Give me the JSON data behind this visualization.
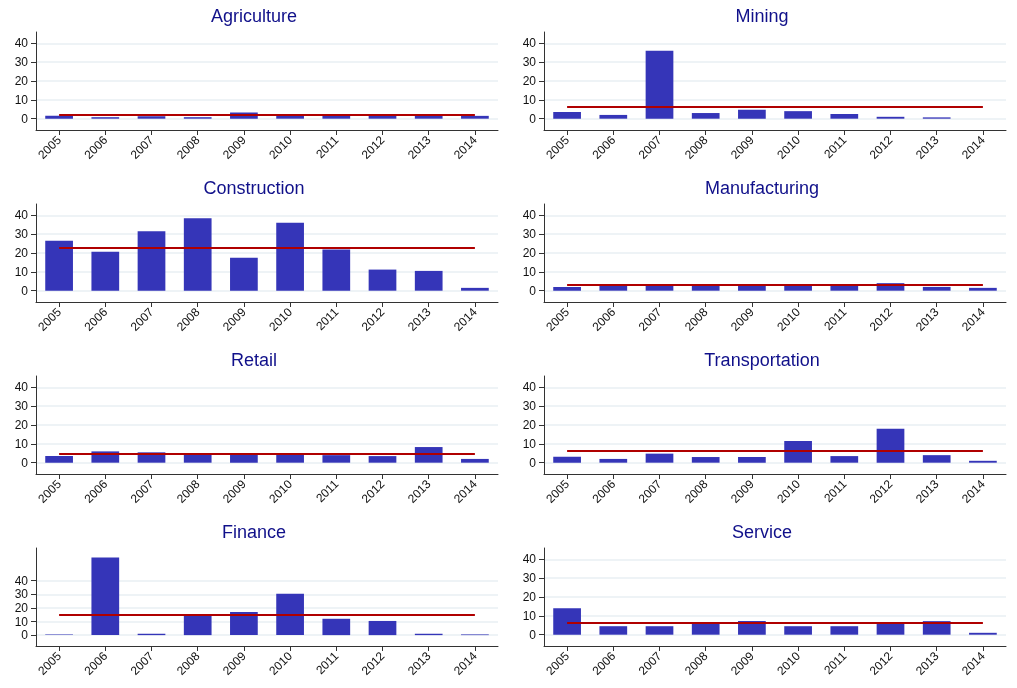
{
  "chart_data": [
    {
      "type": "bar",
      "title": "Agriculture",
      "categories": [
        "2005",
        "2006",
        "2007",
        "2008",
        "2009",
        "2010",
        "2011",
        "2012",
        "2013",
        "2014"
      ],
      "values": [
        1.5,
        0.8,
        1.3,
        0.8,
        3.3,
        2.5,
        2,
        1.8,
        1.8,
        1.5
      ],
      "color": "#3535b8",
      "ylim": [
        -6,
        46
      ],
      "yticks": [
        0,
        10,
        20,
        30,
        40
      ],
      "grid": "y",
      "ref_lines": [
        {
          "axis": "y",
          "value": 2,
          "color": "#b00000"
        }
      ]
    },
    {
      "type": "bar",
      "title": "Mining",
      "categories": [
        "2005",
        "2006",
        "2007",
        "2008",
        "2009",
        "2010",
        "2011",
        "2012",
        "2013",
        "2014"
      ],
      "values": [
        3.5,
        2,
        36,
        3,
        4.8,
        4,
        2.5,
        1,
        0.7,
        0
      ],
      "color": "#3535b8",
      "ylim": [
        -6,
        46
      ],
      "yticks": [
        0,
        10,
        20,
        30,
        40
      ],
      "grid": "y",
      "ref_lines": [
        {
          "axis": "y",
          "value": 6.3,
          "color": "#b00000"
        }
      ]
    },
    {
      "type": "bar",
      "title": "Construction",
      "categories": [
        "2005",
        "2006",
        "2007",
        "2008",
        "2009",
        "2010",
        "2011",
        "2012",
        "2013",
        "2014"
      ],
      "values": [
        26.5,
        20.7,
        31.6,
        38.4,
        17.5,
        36,
        21.8,
        11.2,
        10.5,
        1.5
      ],
      "color": "#3535b8",
      "ylim": [
        -6,
        46
      ],
      "yticks": [
        0,
        10,
        20,
        30,
        40
      ],
      "grid": "y",
      "ref_lines": [
        {
          "axis": "y",
          "value": 22.8,
          "color": "#b00000"
        }
      ]
    },
    {
      "type": "bar",
      "title": "Manufacturing",
      "categories": [
        "2005",
        "2006",
        "2007",
        "2008",
        "2009",
        "2010",
        "2011",
        "2012",
        "2013",
        "2014"
      ],
      "values": [
        2,
        2.5,
        3,
        3,
        2.5,
        2.5,
        3,
        4,
        2,
        1.5
      ],
      "color": "#3535b8",
      "ylim": [
        -6,
        46
      ],
      "yticks": [
        0,
        10,
        20,
        30,
        40
      ],
      "grid": "y",
      "ref_lines": [
        {
          "axis": "y",
          "value": 3,
          "color": "#b00000"
        }
      ]
    },
    {
      "type": "bar",
      "title": "Retail",
      "categories": [
        "2005",
        "2006",
        "2007",
        "2008",
        "2009",
        "2010",
        "2011",
        "2012",
        "2013",
        "2014"
      ],
      "values": [
        3.5,
        6,
        5.5,
        4.5,
        5,
        5,
        4,
        3.5,
        8.3,
        2
      ],
      "color": "#3535b8",
      "ylim": [
        -6,
        46
      ],
      "yticks": [
        0,
        10,
        20,
        30,
        40
      ],
      "grid": "y",
      "ref_lines": [
        {
          "axis": "y",
          "value": 5,
          "color": "#b00000"
        }
      ]
    },
    {
      "type": "bar",
      "title": "Transportation",
      "categories": [
        "2005",
        "2006",
        "2007",
        "2008",
        "2009",
        "2010",
        "2011",
        "2012",
        "2013",
        "2014"
      ],
      "values": [
        3.2,
        2,
        4.8,
        3,
        3,
        11.5,
        3.5,
        18,
        4,
        1
      ],
      "color": "#3535b8",
      "ylim": [
        -6,
        46
      ],
      "yticks": [
        0,
        10,
        20,
        30,
        40
      ],
      "grid": "y",
      "ref_lines": [
        {
          "axis": "y",
          "value": 6.3,
          "color": "#b00000"
        }
      ]
    },
    {
      "type": "bar",
      "title": "Finance",
      "categories": [
        "2005",
        "2006",
        "2007",
        "2008",
        "2009",
        "2010",
        "2011",
        "2012",
        "2013",
        "2014"
      ],
      "values": [
        0.5,
        57,
        1,
        14.8,
        17,
        30.4,
        12,
        10.4,
        1,
        0.5
      ],
      "color": "#3535b8",
      "ylim": [
        -8,
        64
      ],
      "yticks": [
        0,
        10,
        20,
        30,
        40
      ],
      "grid": "y",
      "ref_lines": [
        {
          "axis": "y",
          "value": 15,
          "color": "#b00000"
        }
      ]
    },
    {
      "type": "bar",
      "title": "Service",
      "categories": [
        "2005",
        "2006",
        "2007",
        "2008",
        "2009",
        "2010",
        "2011",
        "2012",
        "2013",
        "2014"
      ],
      "values": [
        14,
        4.5,
        4.5,
        6.5,
        7.3,
        4.5,
        4.5,
        6.5,
        7.2,
        1
      ],
      "color": "#3535b8",
      "ylim": [
        -6,
        46
      ],
      "yticks": [
        0,
        10,
        20,
        30,
        40
      ],
      "grid": "y",
      "ref_lines": [
        {
          "axis": "y",
          "value": 6.1,
          "color": "#b00000"
        }
      ]
    }
  ]
}
